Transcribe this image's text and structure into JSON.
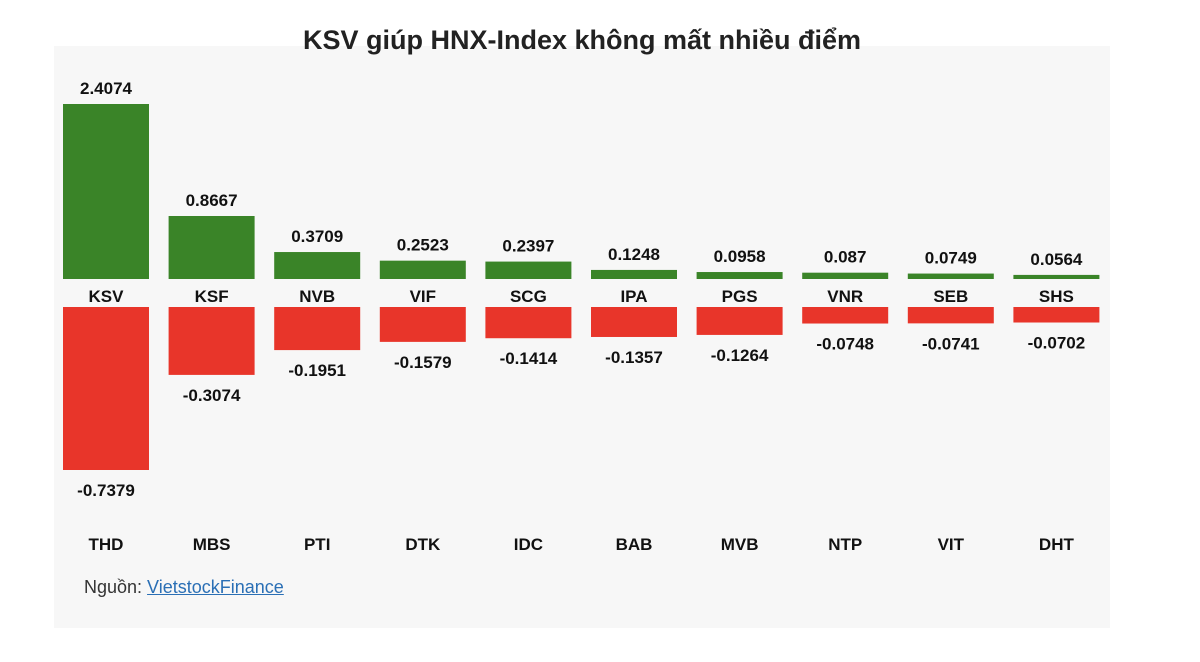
{
  "chart_data": {
    "type": "bar",
    "title": "KSV giúp HNX-Index không mất nhiều điểm",
    "series": [
      {
        "categories": [
          "KSV",
          "KSF",
          "NVB",
          "VIF",
          "SCG",
          "IPA",
          "PGS",
          "VNR",
          "SEB",
          "SHS"
        ],
        "values": [
          2.4074,
          0.8667,
          0.3709,
          0.2523,
          0.2397,
          0.1248,
          0.0958,
          0.087,
          0.0749,
          0.0564
        ],
        "labels": [
          "2.4074",
          "0.8667",
          "0.3709",
          "0.2523",
          "0.2397",
          "0.1248",
          "0.0958",
          "0.087",
          "0.0749",
          "0.0564"
        ],
        "color": "#3a8428"
      },
      {
        "categories": [
          "THD",
          "MBS",
          "PTI",
          "DTK",
          "IDC",
          "BAB",
          "MVB",
          "NTP",
          "VIT",
          "DHT"
        ],
        "values": [
          -0.7379,
          -0.3074,
          -0.1951,
          -0.1579,
          -0.1414,
          -0.1357,
          -0.1264,
          -0.0748,
          -0.0741,
          -0.0702
        ],
        "labels": [
          "-0.7379",
          "-0.3074",
          "-0.1951",
          "-0.1579",
          "-0.1414",
          "-0.1357",
          "-0.1264",
          "-0.0748",
          "-0.0741",
          "-0.0702"
        ],
        "color": "#e8352a"
      }
    ]
  },
  "source": {
    "prefix": "Nguồn: ",
    "link_text": "VietstockFinance"
  }
}
